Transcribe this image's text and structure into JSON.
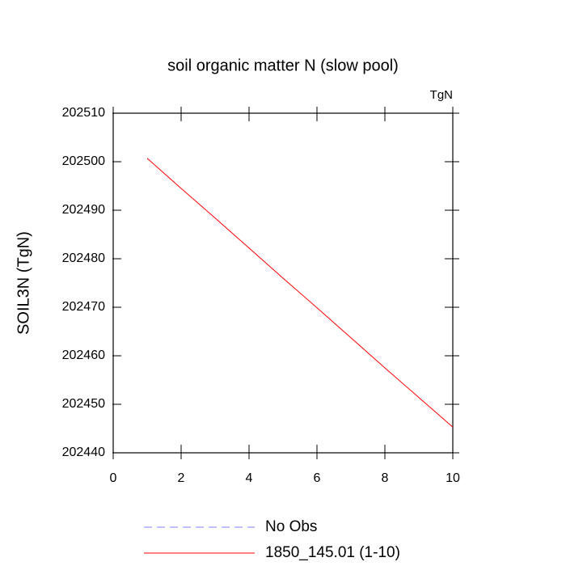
{
  "chart_data": {
    "type": "line",
    "title": "soil organic matter N (slow pool)",
    "annotation": "TgN",
    "y_label": "SOIL3N  (TgN)",
    "x": [
      1,
      2,
      3,
      4,
      5,
      6,
      7,
      8,
      9,
      10
    ],
    "series": [
      {
        "name": "No Obs",
        "color": "#8080ff",
        "dashed": true,
        "values": [
          null,
          null,
          null,
          null,
          null,
          null,
          null,
          null,
          null,
          null
        ]
      },
      {
        "name": "1850_145.01 (1-10)",
        "color": "#ff0000",
        "dashed": false,
        "values": [
          202500.7,
          202494.5,
          202488.4,
          202482.2,
          202476.0,
          202469.9,
          202463.7,
          202457.5,
          202451.4,
          202445.3
        ]
      }
    ],
    "xlim": [
      0,
      10
    ],
    "xticks": [
      0,
      2,
      4,
      6,
      8,
      10
    ],
    "ylim": [
      202440,
      202510
    ],
    "yticks": [
      202440,
      202450,
      202460,
      202470,
      202480,
      202490,
      202500,
      202510
    ],
    "grid": false
  }
}
